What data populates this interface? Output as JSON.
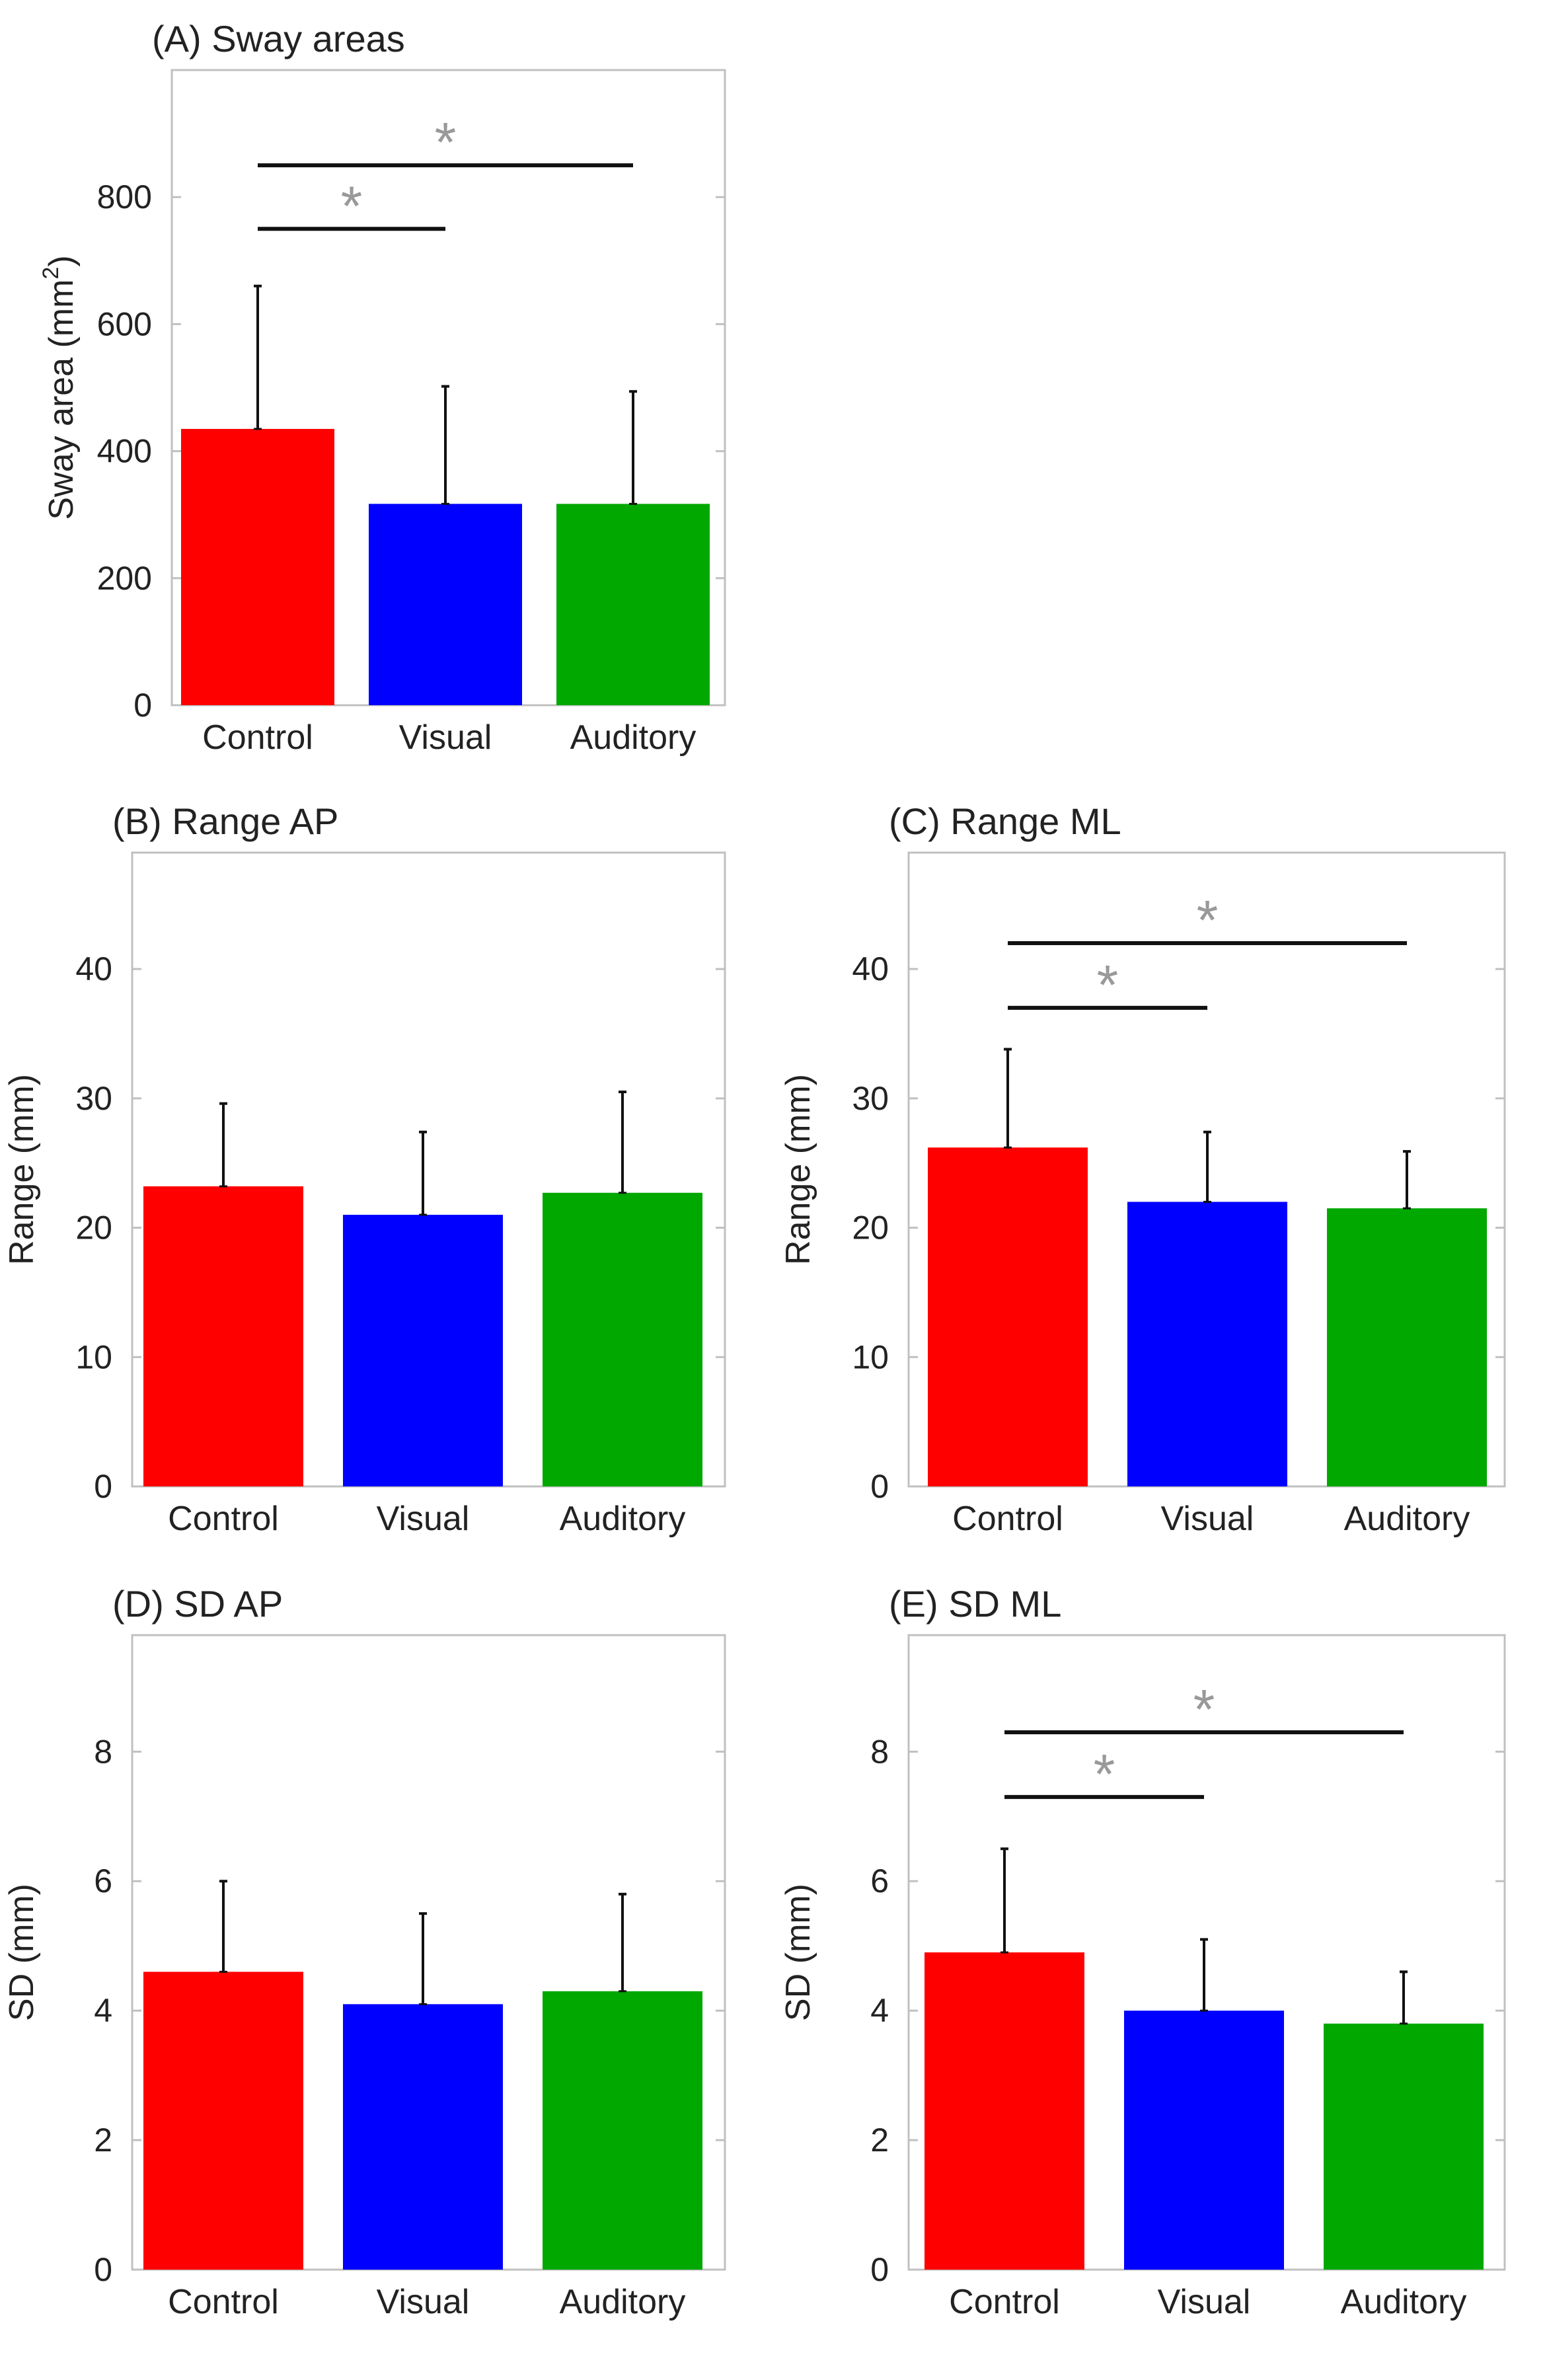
{
  "colors": {
    "control": "#ff0000",
    "visual": "#0000ff",
    "auditory": "#00a800",
    "axis": "#c0c0c0",
    "text": "#222222",
    "significance_line": "#111111",
    "significance_star": "#999999"
  },
  "chart_data": [
    {
      "id": "A",
      "type": "bar",
      "title": "(A) Sway areas",
      "ylabel": "Sway area (mm",
      "ylabel_sup": "2",
      "ylabel_end": ")",
      "categories": [
        "Control",
        "Visual",
        "Auditory"
      ],
      "values": [
        435,
        317,
        317
      ],
      "errors": [
        225,
        185,
        177
      ],
      "ylim": [
        0,
        1000
      ],
      "yticks": [
        0,
        200,
        400,
        600,
        800
      ],
      "significance": [
        {
          "from": "Control",
          "to": "Visual",
          "y": 750,
          "label": "*"
        },
        {
          "from": "Control",
          "to": "Auditory",
          "y": 850,
          "label": "*"
        }
      ]
    },
    {
      "id": "B",
      "type": "bar",
      "title": "(B) Range AP",
      "ylabel": "Range (mm)",
      "categories": [
        "Control",
        "Visual",
        "Auditory"
      ],
      "values": [
        23.2,
        21.0,
        22.7
      ],
      "errors": [
        6.4,
        6.4,
        7.8
      ],
      "ylim": [
        0,
        49
      ],
      "yticks": [
        0,
        10,
        20,
        30,
        40
      ],
      "significance": []
    },
    {
      "id": "C",
      "type": "bar",
      "title": "(C) Range ML",
      "ylabel": "Range (mm)",
      "categories": [
        "Control",
        "Visual",
        "Auditory"
      ],
      "values": [
        26.2,
        22.0,
        21.5
      ],
      "errors": [
        7.6,
        5.4,
        4.4
      ],
      "ylim": [
        0,
        49
      ],
      "yticks": [
        0,
        10,
        20,
        30,
        40
      ],
      "significance": [
        {
          "from": "Control",
          "to": "Visual",
          "y": 37,
          "label": "*"
        },
        {
          "from": "Control",
          "to": "Auditory",
          "y": 42,
          "label": "*"
        }
      ]
    },
    {
      "id": "D",
      "type": "bar",
      "title": "(D) SD AP",
      "ylabel": "SD (mm)",
      "categories": [
        "Control",
        "Visual",
        "Auditory"
      ],
      "values": [
        4.6,
        4.1,
        4.3
      ],
      "errors": [
        1.4,
        1.4,
        1.5
      ],
      "ylim": [
        0,
        9.8
      ],
      "yticks": [
        0,
        2,
        4,
        6,
        8
      ],
      "significance": []
    },
    {
      "id": "E",
      "type": "bar",
      "title": "(E) SD ML",
      "ylabel": "SD (mm)",
      "categories": [
        "Control",
        "Visual",
        "Auditory"
      ],
      "values": [
        4.9,
        4.0,
        3.8
      ],
      "errors": [
        1.6,
        1.1,
        0.8
      ],
      "ylim": [
        0,
        9.8
      ],
      "yticks": [
        0,
        2,
        4,
        6,
        8
      ],
      "significance": [
        {
          "from": "Control",
          "to": "Visual",
          "y": 7.3,
          "label": "*"
        },
        {
          "from": "Control",
          "to": "Auditory",
          "y": 8.3,
          "label": "*"
        }
      ]
    }
  ]
}
